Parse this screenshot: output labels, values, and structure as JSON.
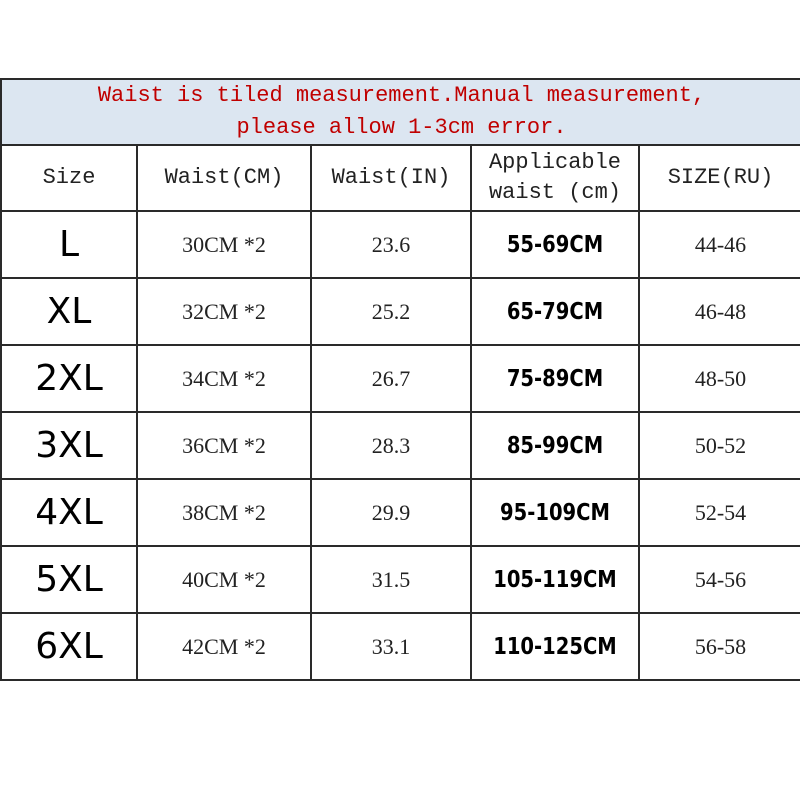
{
  "banner": {
    "line1": "Waist is tiled measurement.Manual measurement,",
    "line2": "please allow 1-3cm error.",
    "text_color": "#c00000",
    "background": "#dce6f1"
  },
  "headers": [
    "Size",
    "Waist(CM)",
    "Waist(IN)",
    "Applicable waist (cm)",
    "SIZE(RU)"
  ],
  "header_applicable": {
    "line1": "Applicable",
    "line2": "waist (cm)"
  },
  "rows": [
    {
      "size": "L",
      "waist_cm": "30CM *2",
      "waist_in": "23.6",
      "applicable": "55-69CM",
      "ru": "44-46"
    },
    {
      "size": "XL",
      "waist_cm": "32CM *2",
      "waist_in": "25.2",
      "applicable": "65-79CM",
      "ru": "46-48"
    },
    {
      "size": "2XL",
      "waist_cm": "34CM *2",
      "waist_in": "26.7",
      "applicable": "75-89CM",
      "ru": "48-50"
    },
    {
      "size": "3XL",
      "waist_cm": "36CM *2",
      "waist_in": "28.3",
      "applicable": "85-99CM",
      "ru": "50-52"
    },
    {
      "size": "4XL",
      "waist_cm": "38CM *2",
      "waist_in": "29.9",
      "applicable": "95-109CM",
      "ru": "52-54"
    },
    {
      "size": "5XL",
      "waist_cm": "40CM *2",
      "waist_in": "31.5",
      "applicable": "105-119CM",
      "ru": "54-56"
    },
    {
      "size": "6XL",
      "waist_cm": "42CM *2",
      "waist_in": "33.1",
      "applicable": "110-125CM",
      "ru": "56-58"
    }
  ]
}
